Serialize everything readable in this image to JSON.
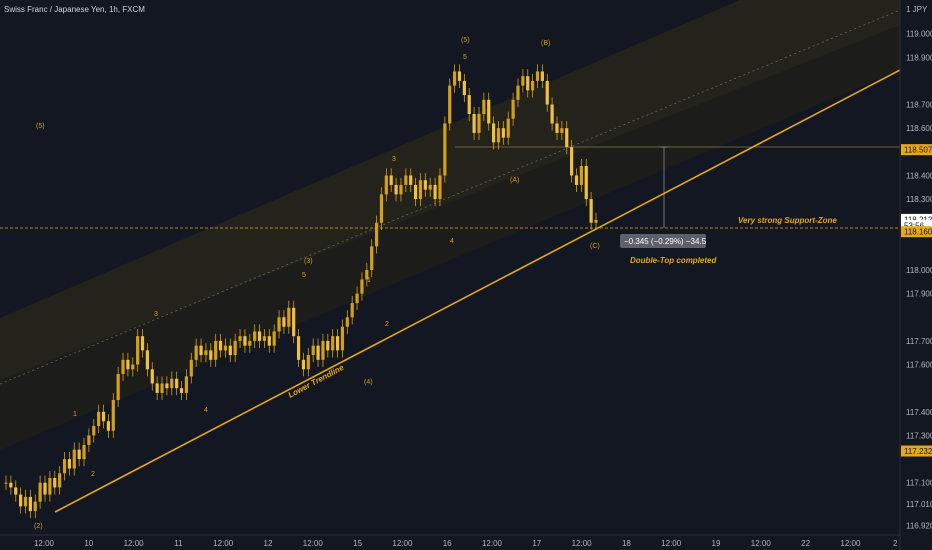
{
  "header": {
    "symbol_title": "Swiss Franc / Japanese Yen, 1h, FXCM",
    "currency": "JPY"
  },
  "colors": {
    "background": "#131722",
    "accent": "#e6a817",
    "candle": "#d4a017",
    "channel_fill": "#1c1c1c",
    "axis_text": "#b2b5be"
  },
  "chart_data": {
    "type": "candlestick",
    "title": "Swiss Franc / Japanese Yen, 1h, FXCM",
    "y_ticks": [
      "119.000",
      "118.900",
      "118.700",
      "118.600",
      "118.400",
      "118.300",
      "118.000",
      "117.900",
      "117.700",
      "117.600",
      "117.400",
      "117.300",
      "117.100",
      "117.010",
      "116.920"
    ],
    "x_ticks": [
      "12:00",
      "10",
      "12:00",
      "11",
      "12:00",
      "12",
      "12:00",
      "15",
      "12:00",
      "16",
      "12:00",
      "17",
      "12:00",
      "18",
      "12:00",
      "19",
      "12:00",
      "22",
      "12:00",
      "2"
    ],
    "ylim": [
      116.9,
      119.1
    ],
    "price_tags": [
      {
        "label": "118.507",
        "value": 118.507,
        "style": "accent"
      },
      {
        "label": "118.212",
        "value": 118.212,
        "style": "white"
      },
      {
        "label": "53:56",
        "value": 118.186,
        "style": "white"
      },
      {
        "label": "118.160",
        "value": 118.16,
        "style": "accent"
      },
      {
        "label": "117.232",
        "value": 117.232,
        "style": "accent"
      }
    ],
    "measurement": {
      "label": "−0.345 (−0.29%) −34.5"
    },
    "annotations": [
      {
        "text": "Lower Trendline",
        "type": "note"
      },
      {
        "text": "Very strong Support-Zone",
        "type": "note"
      },
      {
        "text": "Double-Top completed",
        "type": "note"
      }
    ],
    "wave_labels": [
      "(5)",
      "(2)",
      "1",
      "2",
      "3",
      "4",
      "(3)",
      "5",
      "(4)",
      "1",
      "2",
      "3",
      "4",
      "5",
      "(5)",
      "(B)",
      "(A)",
      "(C)"
    ],
    "candles_close": [
      117.1,
      117.08,
      117.05,
      117.0,
      117.04,
      116.98,
      117.02,
      117.1,
      117.05,
      117.12,
      117.08,
      117.14,
      117.2,
      117.16,
      117.24,
      117.2,
      117.26,
      117.3,
      117.34,
      117.4,
      117.36,
      117.32,
      117.45,
      117.56,
      117.62,
      117.58,
      117.6,
      117.72,
      117.66,
      117.58,
      117.52,
      117.48,
      117.52,
      117.5,
      117.54,
      117.5,
      117.48,
      117.55,
      117.62,
      117.68,
      117.64,
      117.66,
      117.62,
      117.7,
      117.66,
      117.68,
      117.64,
      117.7,
      117.72,
      117.68,
      117.7,
      117.74,
      117.7,
      117.72,
      117.68,
      117.74,
      117.8,
      117.76,
      117.84,
      117.72,
      117.62,
      117.58,
      117.64,
      117.68,
      117.62,
      117.7,
      117.66,
      117.72,
      117.66,
      117.76,
      117.8,
      117.86,
      117.9,
      117.96,
      118.0,
      118.1,
      118.2,
      118.32,
      118.4,
      118.36,
      118.32,
      118.36,
      118.4,
      118.36,
      118.3,
      118.38,
      118.34,
      118.36,
      118.3,
      118.4,
      118.62,
      118.78,
      118.84,
      118.8,
      118.74,
      118.66,
      118.58,
      118.66,
      118.72,
      118.62,
      118.54,
      118.6,
      118.56,
      118.64,
      118.72,
      118.78,
      118.82,
      118.76,
      118.8,
      118.84,
      118.8,
      118.7,
      118.62,
      118.58,
      118.6,
      118.52,
      118.4,
      118.36,
      118.44,
      118.3,
      118.2,
      118.212
    ]
  }
}
